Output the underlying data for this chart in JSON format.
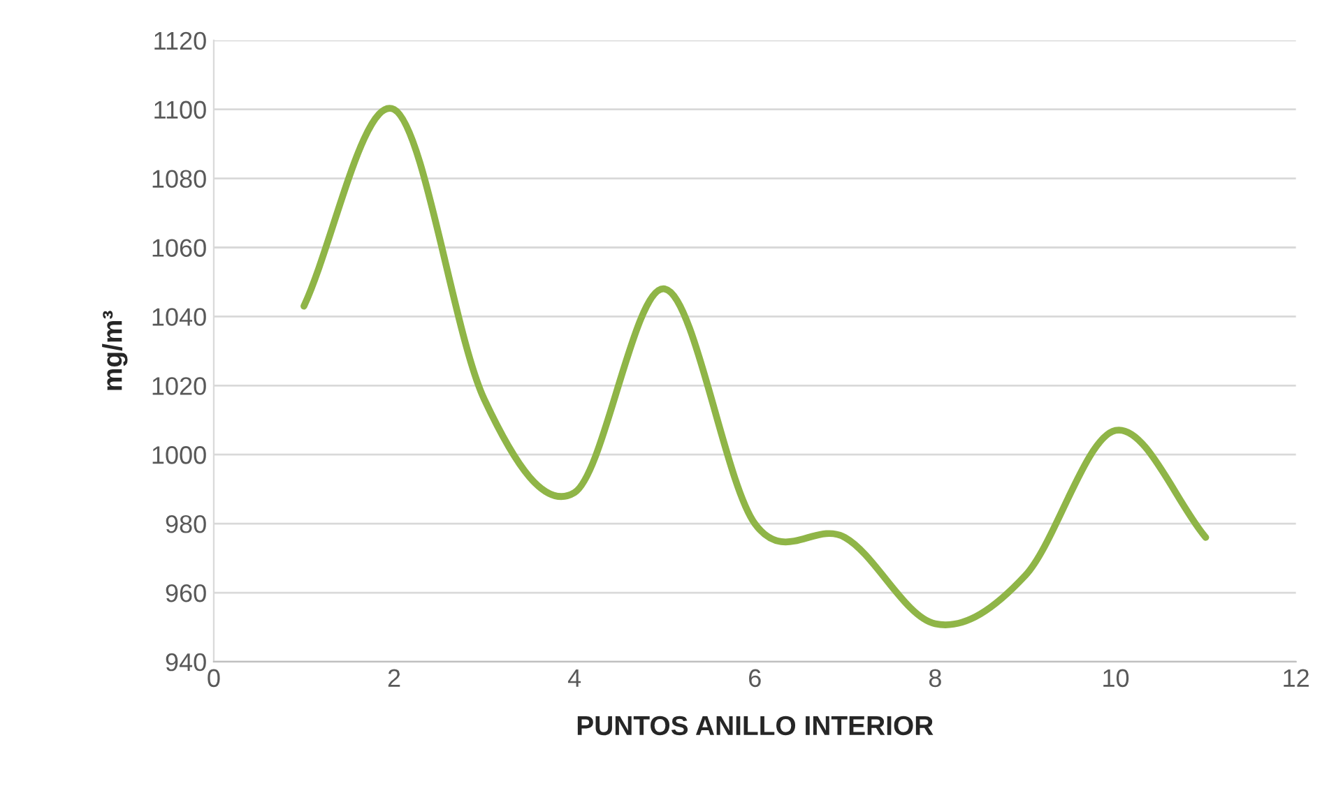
{
  "chart_data": {
    "type": "line",
    "xlabel": "PUNTOS ANILLO INTERIOR",
    "ylabel": "mg/m³",
    "x": [
      1,
      2,
      3,
      4,
      5,
      6,
      7,
      8,
      9,
      10,
      11
    ],
    "series": [
      {
        "color": "#8fb547",
        "values": [
          1043,
          1100,
          1016,
          989,
          1048,
          980,
          976,
          951,
          965,
          1007,
          976
        ]
      }
    ],
    "xlim": [
      0,
      12
    ],
    "xticks": [
      0,
      2,
      4,
      6,
      8,
      10,
      12
    ],
    "ylim": [
      940,
      1120
    ],
    "yticks": [
      940,
      960,
      980,
      1000,
      1020,
      1040,
      1060,
      1080,
      1100,
      1120
    ],
    "grid": "y",
    "marker": "none",
    "line_style": "solid",
    "legend": false
  }
}
